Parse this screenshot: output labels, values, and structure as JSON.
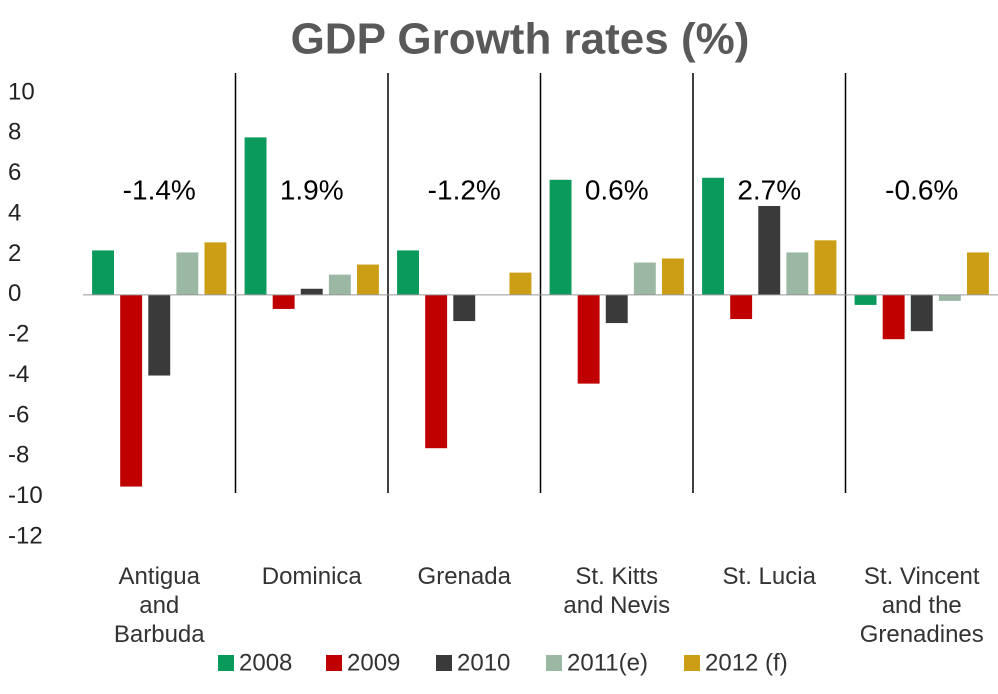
{
  "chart_data": {
    "type": "bar",
    "title": "GDP Growth rates (%)",
    "categories": [
      "Antigua\nand\nBarbuda",
      "Dominica",
      "Grenada",
      "St. Kitts\nand Nevis",
      "St. Lucia",
      "St. Vincent\nand the\nGrenadines"
    ],
    "series": [
      {
        "name": "2008",
        "color": "#0a9a5c",
        "values": [
          2.2,
          7.8,
          2.2,
          5.7,
          5.8,
          -0.5
        ]
      },
      {
        "name": "2009",
        "color": "#c00000",
        "values": [
          -9.5,
          -0.7,
          -7.6,
          -4.4,
          -1.2,
          -2.2
        ]
      },
      {
        "name": "2010",
        "color": "#3a3a3a",
        "values": [
          -4.0,
          0.3,
          -1.3,
          -1.4,
          4.4,
          -1.8
        ]
      },
      {
        "name": "2011(e)",
        "color": "#9ab8a4",
        "values": [
          2.1,
          1.0,
          0,
          1.6,
          2.1,
          -0.3
        ]
      },
      {
        "name": "2012 (f)",
        "color": "#cc9e16",
        "values": [
          2.6,
          1.5,
          1.1,
          1.8,
          2.7,
          2.1
        ]
      }
    ],
    "annotations": [
      "-1.4%",
      "1.9%",
      "-1.2%",
      "0.6%",
      "2.7%",
      "-0.6%"
    ],
    "ylim": [
      -12,
      10
    ],
    "yticks": [
      -12,
      -10,
      -8,
      -6,
      -4,
      -2,
      0,
      2,
      4,
      6,
      8,
      10
    ],
    "grid": false,
    "legend": "bottom"
  }
}
